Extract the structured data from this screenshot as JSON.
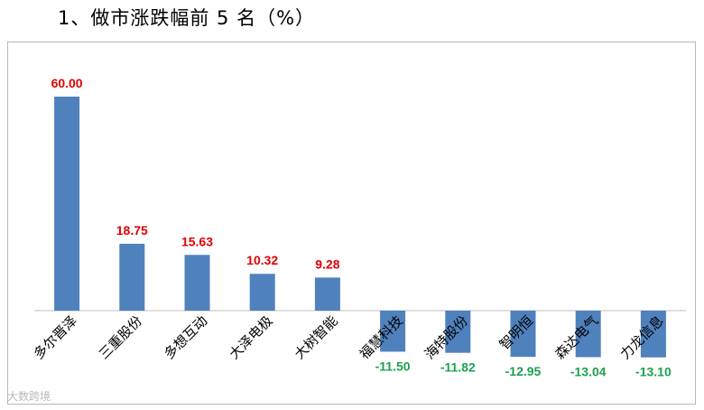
{
  "heading": "1、做市涨跌幅前 5 名（%）",
  "watermark": "大数跨境",
  "chart_data": {
    "type": "bar",
    "title": "",
    "xlabel": "",
    "ylabel": "",
    "ylim": [
      -20,
      65
    ],
    "grid": false,
    "legend": "none",
    "categories": [
      "多尔晋泽",
      "三重股份",
      "多想互动",
      "大泽电极",
      "大树智能",
      "福慧科技",
      "海特股份",
      "智明恒",
      "森达电气",
      "力龙信息"
    ],
    "series": [
      {
        "values": [
          60.0,
          18.75,
          15.63,
          10.32,
          9.28,
          -11.5,
          -11.82,
          -12.95,
          -13.04,
          -13.1
        ]
      }
    ],
    "data_labels": [
      "60.00",
      "18.75",
      "15.63",
      "10.32",
      "9.28",
      "-11.50",
      "-11.82",
      "-12.95",
      "-13.04",
      "-13.10"
    ],
    "colors": {
      "bar": "#4f81bd",
      "positive_label": "#e00000",
      "negative_label": "#1ea050",
      "axis": "#bfbfbf"
    }
  }
}
